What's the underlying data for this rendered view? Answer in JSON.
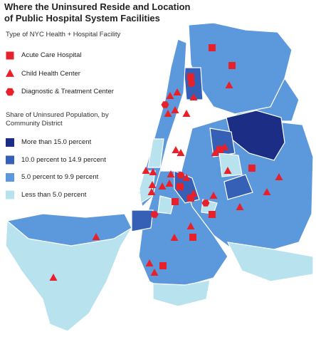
{
  "title": "Where the Uninsured Reside and Location of Public Hospital System Facilities",
  "facility_legend": {
    "heading": "Type of NYC Health + Hospital Facility",
    "items": [
      {
        "label": "Acute Care Hospital",
        "shape": "square"
      },
      {
        "label": "Child Health Center",
        "shape": "triangle"
      },
      {
        "label": "Diagnostic & Treatment Center",
        "shape": "hexagon"
      }
    ]
  },
  "share_legend": {
    "heading": "Share of Uninsured Population, by Community District",
    "items": [
      {
        "label": "More than 15.0 percent",
        "color": "#1c2d85"
      },
      {
        "label": "10.0 percent to 14.9 percent",
        "color": "#3560b5"
      },
      {
        "label": "5.0 percent to 9.9 percent",
        "color": "#5b98dc"
      },
      {
        "label": "Less than 5.0 percent",
        "color": "#b8e2ee"
      }
    ]
  },
  "marker_color": "#e8202a"
}
